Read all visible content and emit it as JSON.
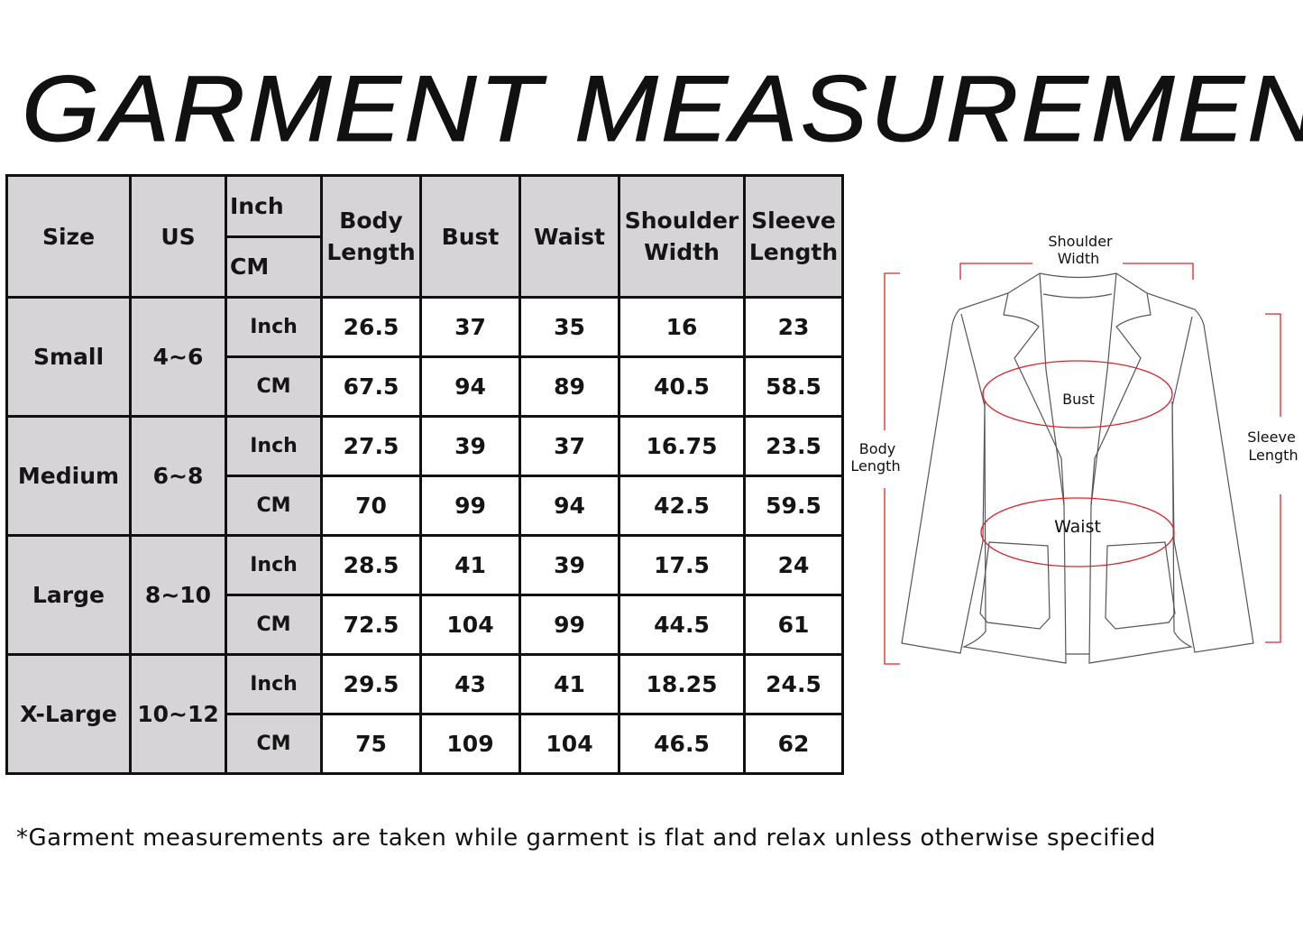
{
  "title": "GARMENT MEASUREMENTS",
  "table": {
    "headers": {
      "size": "Size",
      "us": "US",
      "unit_top": "Inch",
      "unit_bottom": "CM",
      "body_length": [
        "Body",
        "Length"
      ],
      "bust": "Bust",
      "waist": "Waist",
      "shoulder_width": [
        "Shoulder",
        "Width"
      ],
      "sleeve_length": [
        "Sleeve",
        "Length"
      ]
    },
    "rows": [
      {
        "size": "Small",
        "us": "4~6",
        "inch": {
          "unit": "Inch",
          "values": [
            "26.5",
            "37",
            "35",
            "16",
            "23"
          ]
        },
        "cm": {
          "unit": "CM",
          "values": [
            "67.5",
            "94",
            "89",
            "40.5",
            "58.5"
          ]
        }
      },
      {
        "size": "Medium",
        "us": "6~8",
        "inch": {
          "unit": "Inch",
          "values": [
            "27.5",
            "39",
            "37",
            "16.75",
            "23.5"
          ]
        },
        "cm": {
          "unit": "CM",
          "values": [
            "70",
            "99",
            "94",
            "42.5",
            "59.5"
          ]
        }
      },
      {
        "size": "Large",
        "us": "8~10",
        "inch": {
          "unit": "Inch",
          "values": [
            "28.5",
            "41",
            "39",
            "17.5",
            "24"
          ]
        },
        "cm": {
          "unit": "CM",
          "values": [
            "72.5",
            "104",
            "99",
            "44.5",
            "61"
          ]
        }
      },
      {
        "size": "X-Large",
        "us": "10~12",
        "inch": {
          "unit": "Inch",
          "values": [
            "29.5",
            "43",
            "41",
            "18.25",
            "24.5"
          ]
        },
        "cm": {
          "unit": "CM",
          "values": [
            "75",
            "109",
            "104",
            "46.5",
            "62"
          ]
        }
      }
    ]
  },
  "diagram": {
    "shoulder": [
      "Shoulder",
      "Width"
    ],
    "body": [
      "Body",
      "Length"
    ],
    "sleeve": [
      "Sleeve",
      "Length"
    ],
    "bust": "Bust",
    "waist": "Waist",
    "accent": "#d9262c"
  },
  "note": "*Garment measurements are taken while garment is flat and relax unless otherwise specified"
}
